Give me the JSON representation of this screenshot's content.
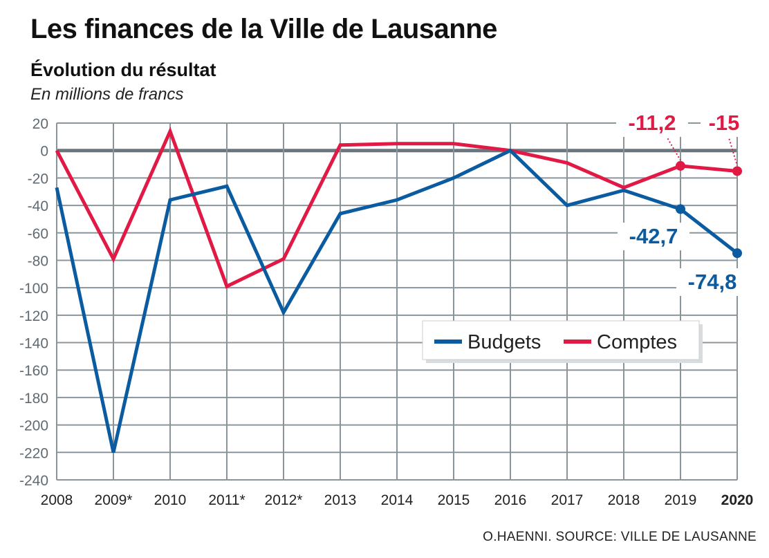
{
  "chart_data": {
    "type": "line",
    "title": "Les finances de la Ville de Lausanne",
    "subtitle": "Évolution du résultat",
    "ylabel": "En millions de francs",
    "source": "O.HAENNI. SOURCE: VILLE DE LAUSANNE",
    "x": [
      "2008",
      "2009*",
      "2010",
      "2011*",
      "2012*",
      "2013",
      "2014",
      "2015",
      "2016",
      "2017",
      "2018",
      "2019",
      "2020"
    ],
    "ylim": [
      -240,
      20
    ],
    "yticks": [
      20,
      0,
      -20,
      -40,
      -60,
      -80,
      -100,
      -120,
      -140,
      -160,
      -180,
      -200,
      -220,
      -240
    ],
    "grid": true,
    "legend_position": "center-right",
    "series": [
      {
        "name": "Budgets",
        "color": "#0b5ba1",
        "values": [
          -27,
          -220,
          -36,
          -26,
          -118,
          -46,
          -36,
          -20,
          0,
          -40,
          -29,
          -42.7,
          -74.8
        ]
      },
      {
        "name": "Comptes",
        "color": "#e01a45",
        "values": [
          0,
          -79,
          14,
          -99,
          -79,
          4,
          5,
          5,
          0,
          -9,
          -27,
          -11.2,
          -15
        ]
      }
    ],
    "annotations": [
      {
        "series": "Comptes",
        "x": "2019",
        "text": "-11,2"
      },
      {
        "series": "Comptes",
        "x": "2020",
        "text": "-15"
      },
      {
        "series": "Budgets",
        "x": "2019",
        "text": "-42,7"
      },
      {
        "series": "Budgets",
        "x": "2020",
        "text": "-74,8"
      }
    ]
  }
}
